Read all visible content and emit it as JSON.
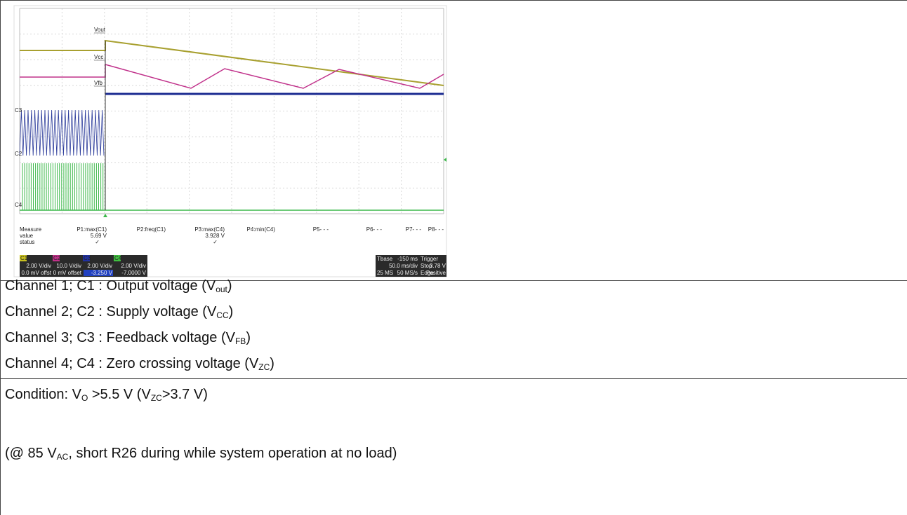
{
  "scope": {
    "trace_labels": [
      "Vout",
      "Vcc",
      "Vfb"
    ],
    "channel_markers": [
      "C3",
      "C2",
      "C4"
    ],
    "measure": {
      "row_labels": [
        "Measure",
        "value",
        "status"
      ],
      "params": [
        {
          "name": "P1:max(C1)",
          "value": "5.69 V",
          "status": "✓"
        },
        {
          "name": "P2:freq(C1)"
        },
        {
          "name": "P3:max(C4)",
          "value": "3.928 V",
          "status": "✓"
        },
        {
          "name": "P4:min(C4)"
        },
        {
          "name": "P5- - -"
        },
        {
          "name": "P6- - -"
        },
        {
          "name": "P7- - -"
        },
        {
          "name": "P8- - -"
        }
      ]
    },
    "channels": [
      {
        "name": "C1",
        "scale": "2.00 V/div",
        "offset": "0.0 mV offst"
      },
      {
        "name": "C2",
        "scale": "10.0 V/div",
        "offset": "0 mV offset"
      },
      {
        "name": "C3",
        "scale": "2.00 V/div",
        "offset": "-3.250 V"
      },
      {
        "name": "C4",
        "scale": "2.00 V/div",
        "offset": "-7.0000 V"
      }
    ],
    "timebase": {
      "label": "Tbase",
      "delay": "-150 ms",
      "scale": "50.0 ms/div",
      "samples": "25 MS",
      "rate": "50 MS/s"
    },
    "trigger": {
      "label": "Trigger",
      "mode": "Stop",
      "level": "3.78 V",
      "type": "Edge",
      "slope": "Positive"
    }
  },
  "legend": [
    [
      {
        "text": "Channel 1; C1 : Output voltage (V"
      },
      {
        "sub": "out"
      },
      {
        "text": ")"
      }
    ],
    [
      {
        "text": "Channel 2; C2 : Supply voltage (V"
      },
      {
        "sub": "CC"
      },
      {
        "text": ")"
      }
    ],
    [
      {
        "text": "Channel 3; C3 : Feedback voltage (V"
      },
      {
        "sub": "FB"
      },
      {
        "text": ")"
      }
    ],
    [
      {
        "text": "Channel 4; C4 : Zero crossing voltage (V"
      },
      {
        "sub": "ZC"
      },
      {
        "text": ")"
      }
    ]
  ],
  "condition": [
    [
      {
        "text": "Condition: V"
      },
      {
        "sub": "O"
      },
      {
        "text": " >5.5 V (V"
      },
      {
        "sub": "ZC"
      },
      {
        "text": ">3.7 V)"
      }
    ],
    [
      {
        "text": "(@ 85 V"
      },
      {
        "sub": "AC"
      },
      {
        "text": ", short R26  during while system operation at no load)"
      }
    ]
  ]
}
